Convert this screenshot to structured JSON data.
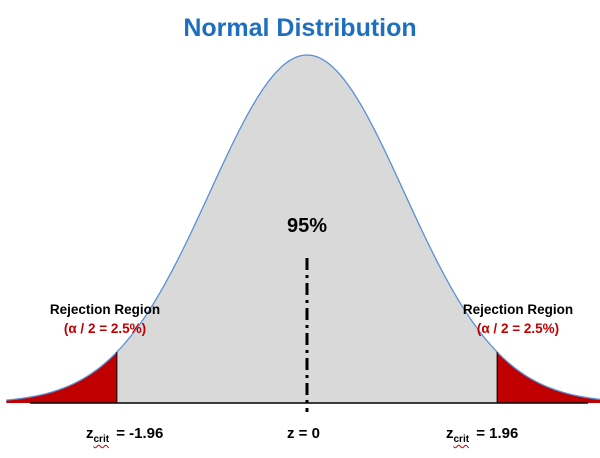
{
  "title": "Normal Distribution",
  "center_label": "95%",
  "rejection": {
    "label": "Rejection Region",
    "alpha_label": "(α / 2 = 2.5%)"
  },
  "z_labels": {
    "crit_prefix": "z",
    "crit_sub": "crit",
    "left_value": " = -1.96",
    "center": "z = 0",
    "right_value": " = 1.96"
  },
  "colors": {
    "title": "#1f6fc0",
    "curve_fill": "#d9d9d9",
    "curve_line": "#5b8fd6",
    "rejection_fill": "#c00000",
    "alpha_text": "#c00000"
  },
  "chart_data": {
    "type": "area",
    "distribution": "normal",
    "mean": 0,
    "sd": 1,
    "critical_values": [
      -1.96,
      1.96
    ],
    "tail_alpha_each": 0.025,
    "center_area": 0.95
  }
}
